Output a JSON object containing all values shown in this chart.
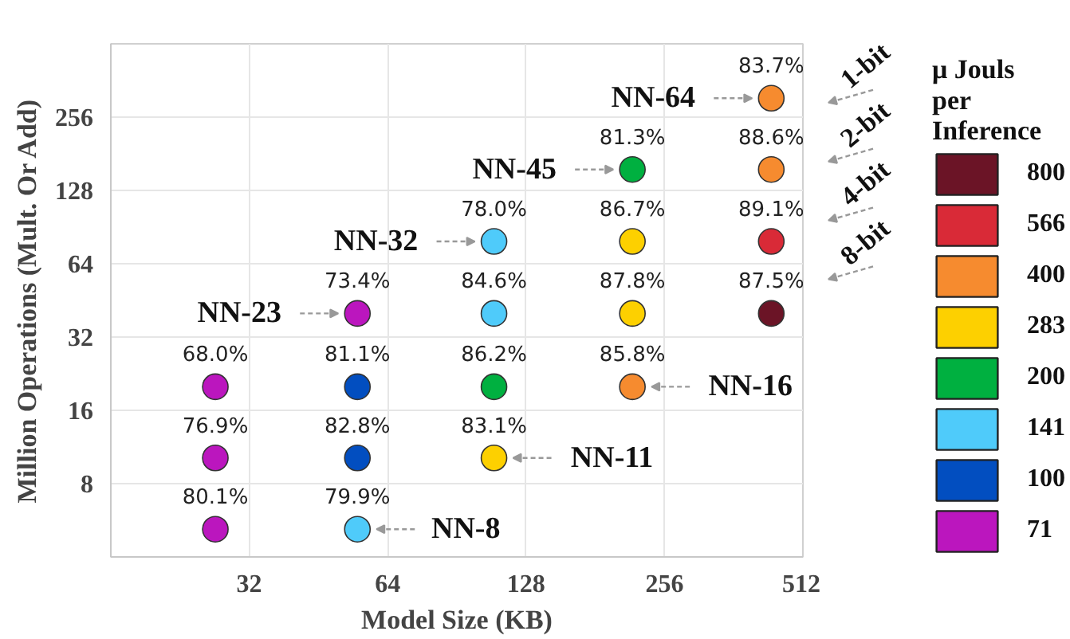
{
  "chart_data": {
    "type": "scatter",
    "xlabel": "Model Size (KB)",
    "ylabel": "Million Operations (Mult. Or Add)",
    "legend_title": "μ Jouls per Inference",
    "series": [
      {
        "name": "800",
        "color": "#6b1426",
        "x": [
          437
        ],
        "values": [
          40
        ]
      },
      {
        "name": "566",
        "color": "#d92a37",
        "x": [
          437
        ],
        "values": [
          79
        ]
      },
      {
        "name": "400",
        "color": "#f68b2f",
        "x": [
          218,
          437,
          437
        ],
        "values": [
          20,
          156,
          306
        ]
      },
      {
        "name": "283",
        "color": "#fdd000",
        "x": [
          109,
          218,
          218
        ],
        "values": [
          10.2,
          40,
          79
        ]
      },
      {
        "name": "200",
        "color": "#00b040",
        "x": [
          109,
          218
        ],
        "values": [
          20,
          156
        ]
      },
      {
        "name": "141",
        "color": "#4fcbfa",
        "x": [
          55,
          109,
          109
        ],
        "values": [
          5.2,
          40,
          79
        ]
      },
      {
        "name": "100",
        "color": "#024ec0",
        "x": [
          55,
          55
        ],
        "values": [
          10.2,
          20
        ]
      },
      {
        "name": "71",
        "color": "#bb16be",
        "x": [
          27,
          27,
          27,
          55
        ],
        "values": [
          5.2,
          10.2,
          20,
          40
        ]
      }
    ],
    "annotations": [
      {
        "text": "80.1%",
        "x": 27,
        "y": 5.2
      },
      {
        "text": "79.9%",
        "x": 55,
        "y": 5.2
      },
      {
        "text": "76.9%",
        "x": 27,
        "y": 10.2
      },
      {
        "text": "82.8%",
        "x": 55,
        "y": 10.2
      },
      {
        "text": "83.1%",
        "x": 109,
        "y": 10.2
      },
      {
        "text": "68.0%",
        "x": 27,
        "y": 20
      },
      {
        "text": "81.1%",
        "x": 55,
        "y": 20
      },
      {
        "text": "86.2%",
        "x": 109,
        "y": 20
      },
      {
        "text": "85.8%",
        "x": 218,
        "y": 20
      },
      {
        "text": "73.4%",
        "x": 55,
        "y": 40
      },
      {
        "text": "84.6%",
        "x": 109,
        "y": 40
      },
      {
        "text": "87.8%",
        "x": 218,
        "y": 40
      },
      {
        "text": "87.5%",
        "x": 437,
        "y": 40
      },
      {
        "text": "78.0%",
        "x": 109,
        "y": 79
      },
      {
        "text": "86.7%",
        "x": 218,
        "y": 79
      },
      {
        "text": "89.1%",
        "x": 437,
        "y": 79
      },
      {
        "text": "81.3%",
        "x": 218,
        "y": 156
      },
      {
        "text": "88.6%",
        "x": 437,
        "y": 156
      },
      {
        "text": "83.7%",
        "x": 437,
        "y": 306
      },
      {
        "text": "NN-64",
        "x": 437,
        "y": 306
      },
      {
        "text": "NN-45",
        "x": 218,
        "y": 156
      },
      {
        "text": "NN-32",
        "x": 109,
        "y": 79
      },
      {
        "text": "NN-23",
        "x": 55,
        "y": 40
      },
      {
        "text": "NN-16",
        "x": 218,
        "y": 20
      },
      {
        "text": "NN-11",
        "x": 109,
        "y": 10.2
      },
      {
        "text": "NN-8",
        "x": 55,
        "y": 5.2
      },
      "1-bit",
      "2-bit",
      "4-bit",
      "8-bit"
    ],
    "xlim": [
      16,
      512
    ],
    "ylim": [
      4,
      512
    ],
    "xticks": [
      32,
      64,
      128,
      256,
      512
    ],
    "yticks": [
      8,
      16,
      32,
      64,
      128,
      256
    ],
    "log": "xy",
    "grid": true,
    "marker": "circle",
    "legend": "right"
  }
}
